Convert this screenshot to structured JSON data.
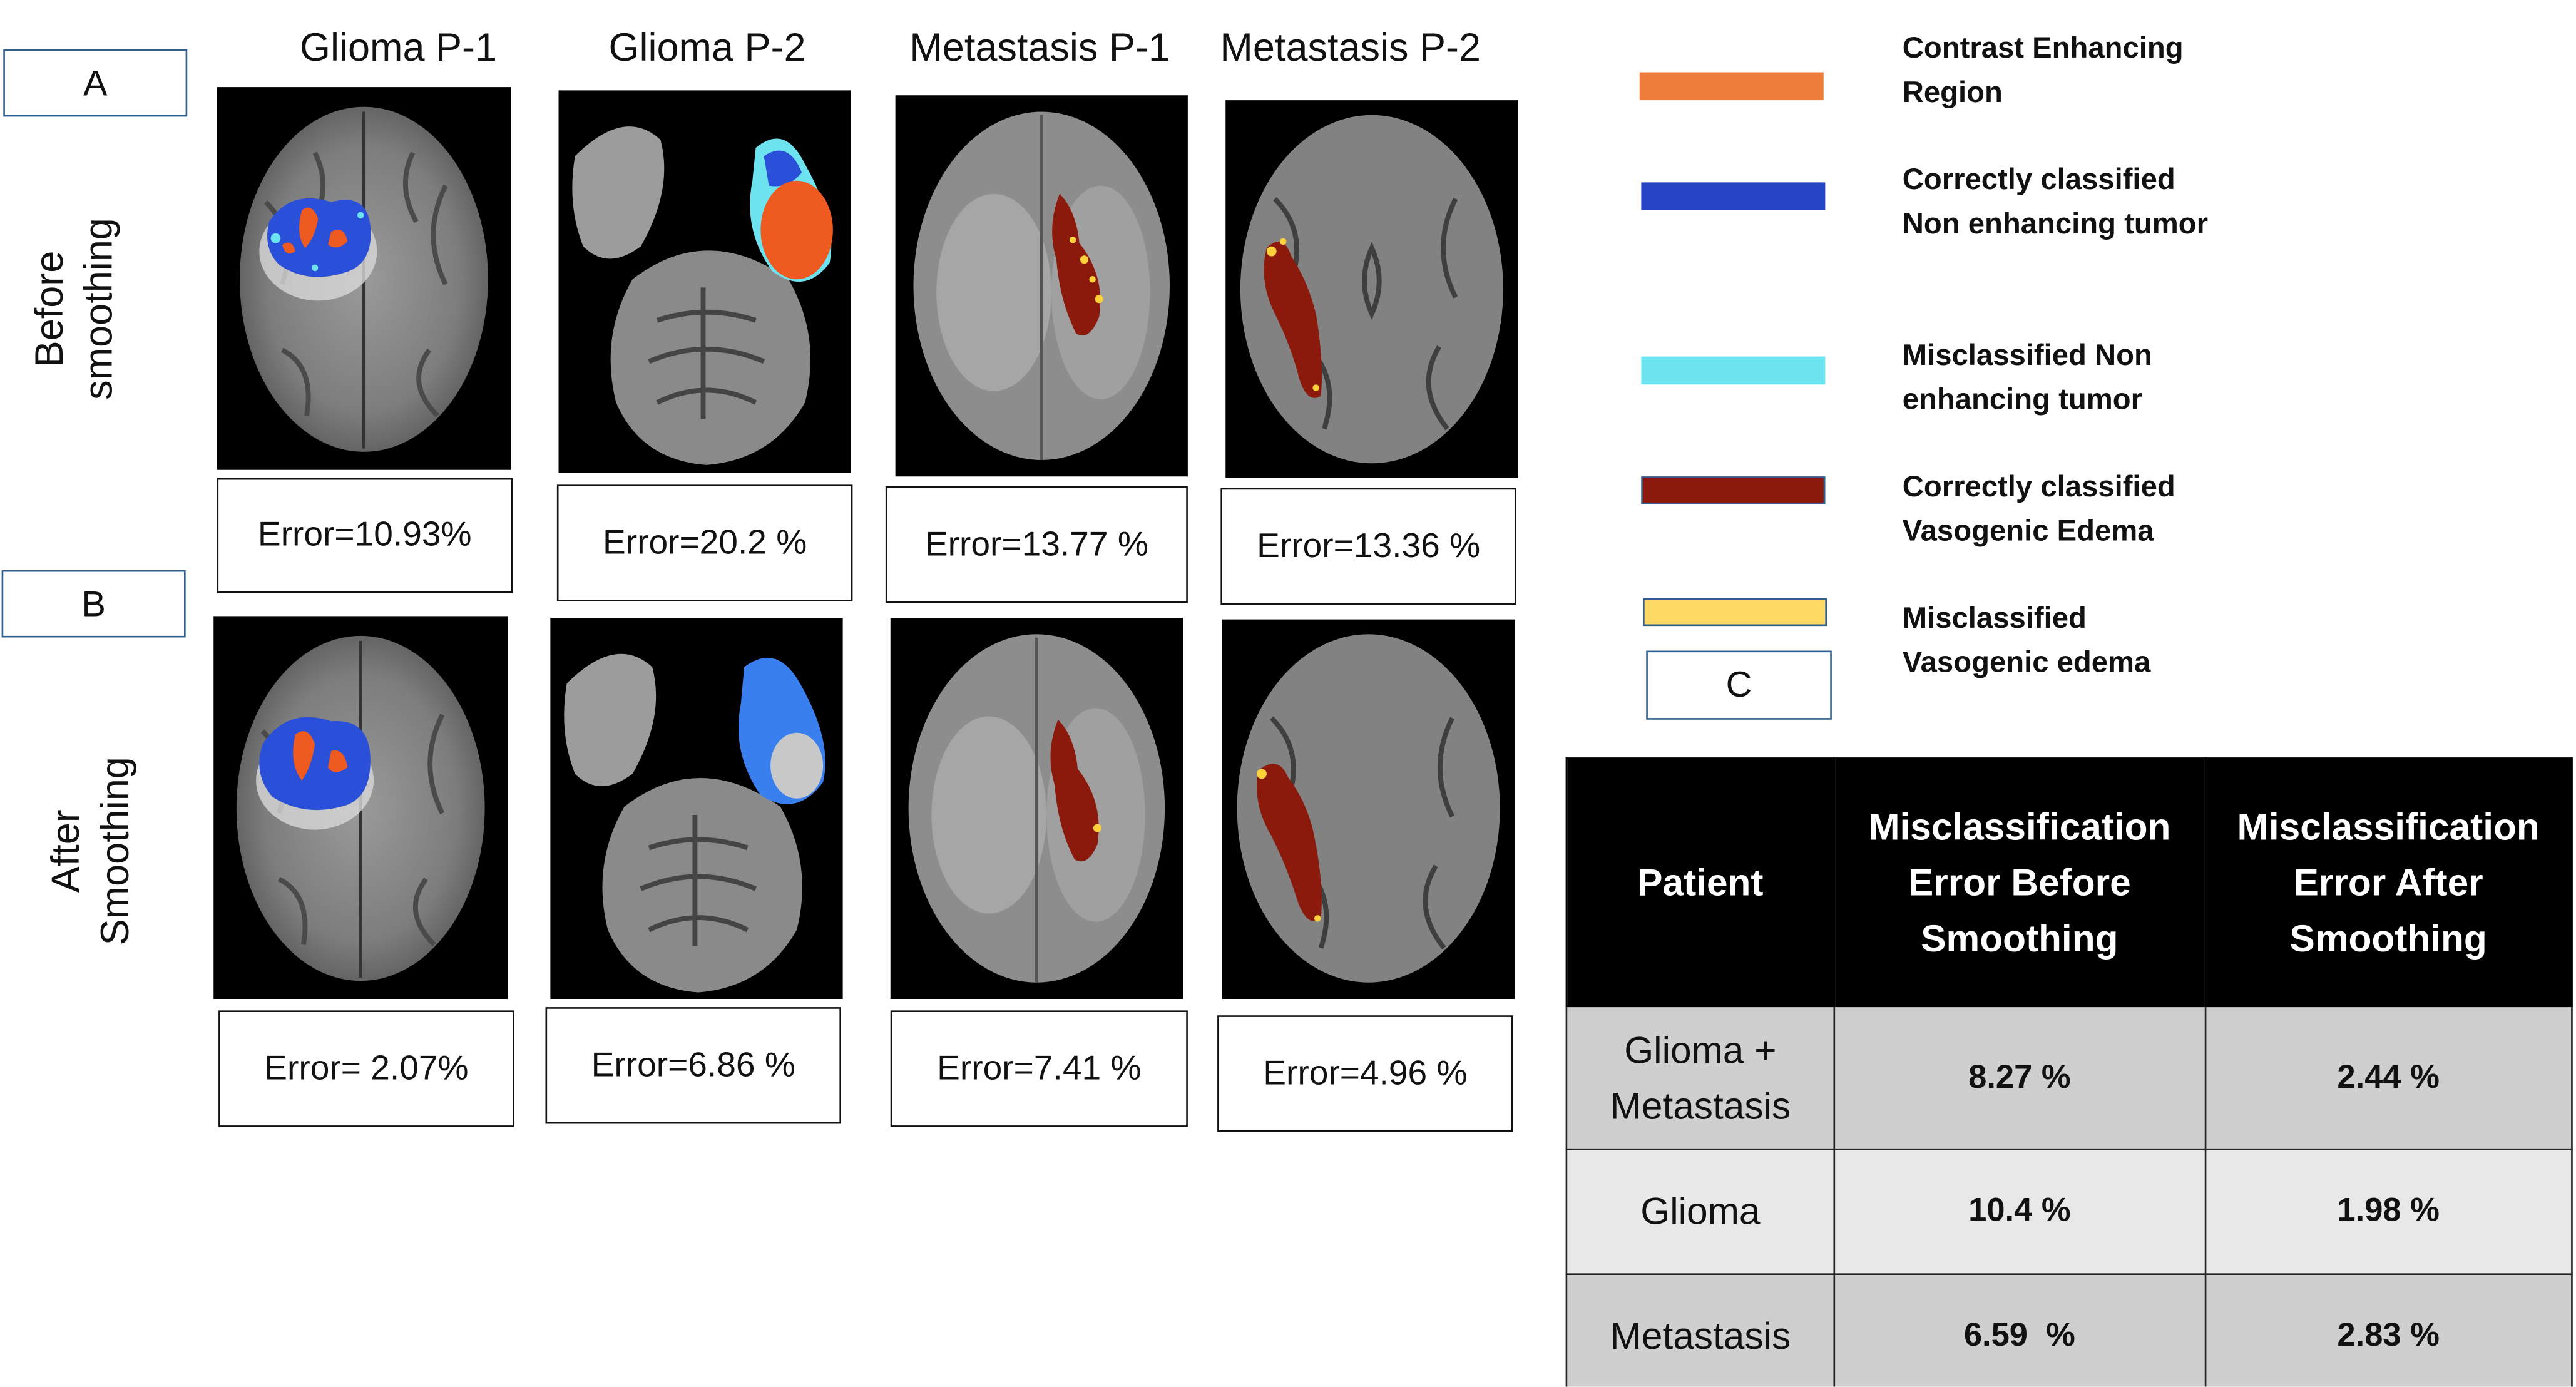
{
  "panels": {
    "a_label": "A",
    "b_label": "B",
    "c_label": "C"
  },
  "columns": [
    "Glioma P-1",
    "Glioma P-2",
    "Metastasis P-1",
    "Metastasis P-2"
  ],
  "rows": {
    "before": "Before smoothing",
    "after": "After Smoothing"
  },
  "errors_before": [
    "Error=10.93%",
    "Error=20.2 %",
    "Error=13.77 %",
    "Error=13.36 %"
  ],
  "errors_after": [
    "Error= 2.07%",
    "Error=6.86 %",
    "Error=7.41 %",
    "Error=4.96 %"
  ],
  "legend": [
    {
      "label": "Contrast Enhancing Region",
      "color": "#ee7d3b"
    },
    {
      "label": "Correctly classified Non enhancing tumor",
      "color": "#2845c8"
    },
    {
      "label": "Misclassified Non enhancing tumor",
      "color": "#6ee3f0"
    },
    {
      "label": "Correctly classified Vasogenic Edema",
      "color": "#8b1a0c"
    },
    {
      "label": "Misclassified Vasogenic edema",
      "color": "#ffd966"
    }
  ],
  "table": {
    "headers": [
      "Patient",
      "Misclassification Error Before Smoothing",
      "Misclassification Error After Smoothing"
    ],
    "rows": [
      {
        "patient": "Glioma + Metastasis",
        "before": "8.27 %",
        "after": "2.44 %"
      },
      {
        "patient": "Glioma",
        "before": "10.4 %",
        "after": "1.98 %"
      },
      {
        "patient": "Metastasis",
        "before": "6.59  %",
        "after": "2.83 %"
      }
    ]
  }
}
